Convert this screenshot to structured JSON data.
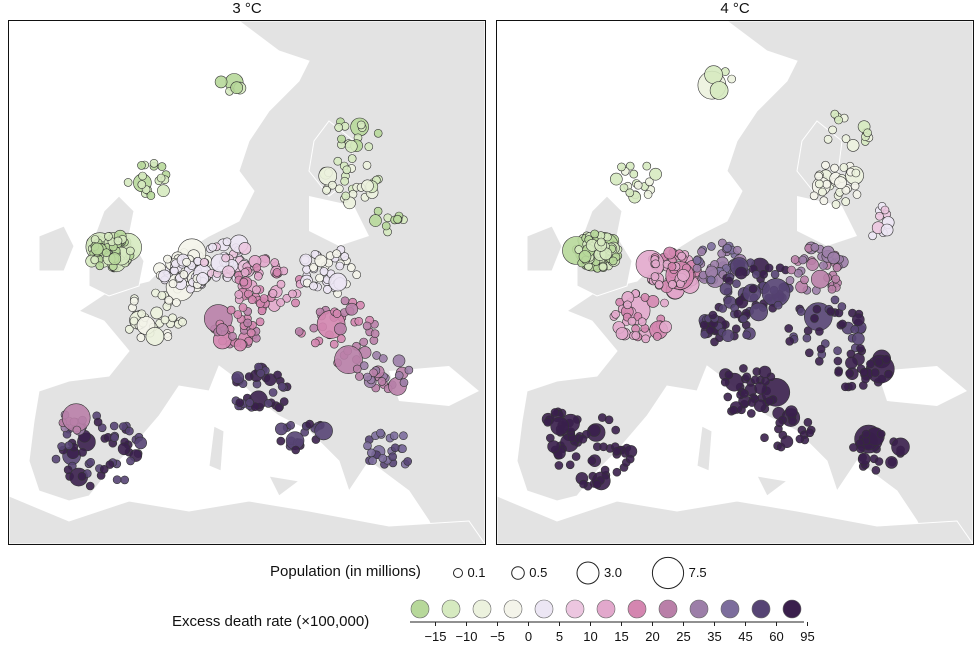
{
  "panels": [
    {
      "title": "3 °C",
      "scenario": "3C"
    },
    {
      "title": "4 °C",
      "scenario": "4C"
    }
  ],
  "legend": {
    "population_label": "Population (in millions)",
    "population_sizes": [
      {
        "label": "0.1",
        "value": 0.1
      },
      {
        "label": "0.5",
        "value": 0.5
      },
      {
        "label": "3.0",
        "value": 3.0
      },
      {
        "label": "7.5",
        "value": 7.5
      }
    ],
    "rate_label": "Excess death rate (×100,000)",
    "rate_ticks": [
      "−15",
      "−10",
      "−5",
      "0",
      "5",
      "10",
      "15",
      "20",
      "25",
      "35",
      "45",
      "60",
      "95"
    ],
    "rate_colors": [
      "#b7d89a",
      "#d6eac0",
      "#ecf2de",
      "#f4f4ea",
      "#ece6f4",
      "#ecc6e0",
      "#e2a8cc",
      "#d486b0",
      "#b97fa8",
      "#9c7ea8",
      "#7c6d9c",
      "#564474",
      "#3a1f4c"
    ]
  },
  "colors": {
    "land": "#e3e3e3",
    "coast": "#ffffff",
    "frame": "#111111",
    "marker_stroke": "#333333"
  }
}
